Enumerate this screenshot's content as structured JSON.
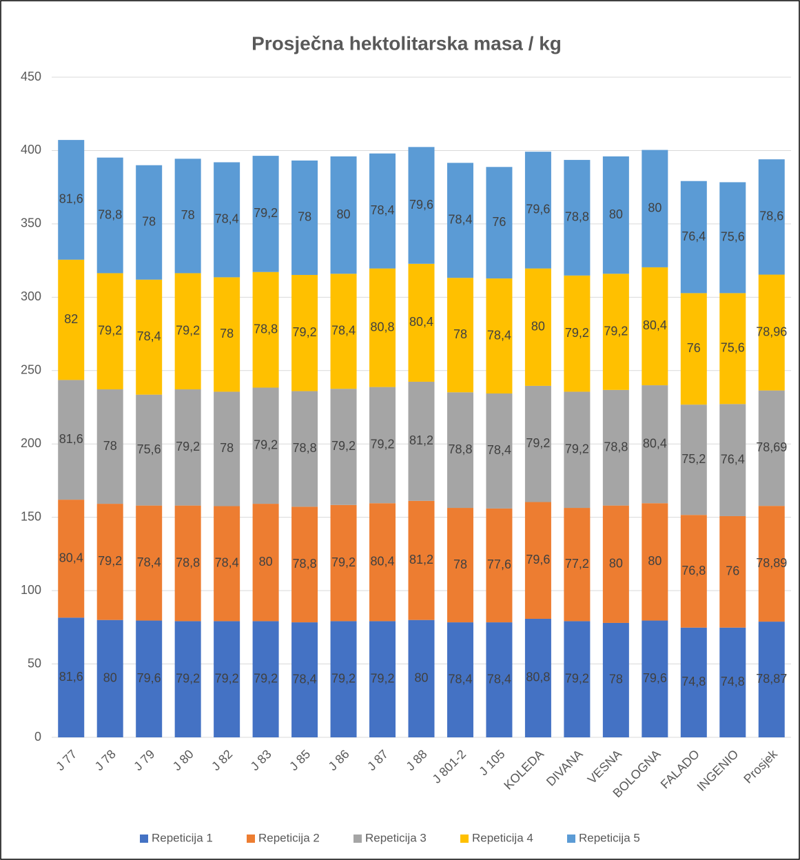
{
  "chart_data": {
    "type": "stacked_bar",
    "title": "Prosječna hektolitarska masa / kg",
    "categories": [
      "J 77",
      "J 78",
      "J 79",
      "J 80",
      "J 82",
      "J 83",
      "J 85",
      "J 86",
      "J 87",
      "J 88",
      "J 801-2",
      "J 105",
      "KOLEDA",
      "DIVANA",
      "VESNA",
      "BOLOGNA",
      "FALADO",
      "INGENIO",
      "Prosjek"
    ],
    "series": [
      {
        "name": "Repeticija 1",
        "color": "#4472c4",
        "values": [
          81.6,
          80,
          79.6,
          79.2,
          79.2,
          79.2,
          78.4,
          79.2,
          79.2,
          80,
          78.4,
          78.4,
          80.8,
          79.2,
          78,
          79.6,
          74.8,
          74.8,
          78.87
        ],
        "value_labels": [
          "81,6",
          "80",
          "79,6",
          "79,2",
          "79,2",
          "79,2",
          "78,4",
          "79,2",
          "79,2",
          "80",
          "78,4",
          "78,4",
          "80,8",
          "79,2",
          "78",
          "79,6",
          "74,8",
          "74,8",
          "78,87"
        ]
      },
      {
        "name": "Repeticija 2",
        "color": "#ed7d31",
        "values": [
          80.4,
          79.2,
          78.4,
          78.8,
          78.4,
          80,
          78.8,
          79.2,
          80.4,
          81.2,
          78,
          77.6,
          79.6,
          77.2,
          80,
          80,
          76.8,
          76,
          78.89
        ],
        "value_labels": [
          "80,4",
          "79,2",
          "78,4",
          "78,8",
          "78,4",
          "80",
          "78,8",
          "79,2",
          "80,4",
          "81,2",
          "78",
          "77,6",
          "79,6",
          "77,2",
          "80",
          "80",
          "76,8",
          "76",
          "78,89"
        ]
      },
      {
        "name": "Repeticija 3",
        "color": "#a5a5a5",
        "values": [
          81.6,
          78,
          75.6,
          79.2,
          78,
          79.2,
          78.8,
          79.2,
          79.2,
          81.2,
          78.8,
          78.4,
          79.2,
          79.2,
          78.8,
          80.4,
          75.2,
          76.4,
          78.69
        ],
        "value_labels": [
          "81,6",
          "78",
          "75,6",
          "79,2",
          "78",
          "79,2",
          "78,8",
          "79,2",
          "79,2",
          "81,2",
          "78,8",
          "78,4",
          "79,2",
          "79,2",
          "78,8",
          "80,4",
          "75,2",
          "76,4",
          "78,69"
        ]
      },
      {
        "name": "Repeticija 4",
        "color": "#ffc000",
        "values": [
          82,
          79.2,
          78.4,
          79.2,
          78,
          78.8,
          79.2,
          78.4,
          80.8,
          80.4,
          78,
          78.4,
          80,
          79.2,
          79.2,
          80.4,
          76,
          75.6,
          78.96
        ],
        "value_labels": [
          "82",
          "79,2",
          "78,4",
          "79,2",
          "78",
          "78,8",
          "79,2",
          "78,4",
          "80,8",
          "80,4",
          "78",
          "78,4",
          "80",
          "79,2",
          "79,2",
          "80,4",
          "76",
          "75,6",
          "78,96"
        ]
      },
      {
        "name": "Repeticija 5",
        "color": "#5b9bd5",
        "values": [
          81.6,
          78.8,
          78,
          78,
          78.4,
          79.2,
          78,
          80,
          78.4,
          79.6,
          78.4,
          76,
          79.6,
          78.8,
          80,
          80,
          76.4,
          75.6,
          78.6
        ],
        "value_labels": [
          "81,6",
          "78,8",
          "78",
          "78",
          "78,4",
          "79,2",
          "78",
          "80",
          "78,4",
          "79,6",
          "78,4",
          "76",
          "79,6",
          "78,8",
          "80",
          "80",
          "76,4",
          "75,6",
          "78,6"
        ]
      }
    ],
    "ylim": [
      0,
      450
    ],
    "yticks": [
      0,
      50,
      100,
      150,
      200,
      250,
      300,
      350,
      400,
      450
    ],
    "grid": true,
    "legend": "bottom"
  }
}
